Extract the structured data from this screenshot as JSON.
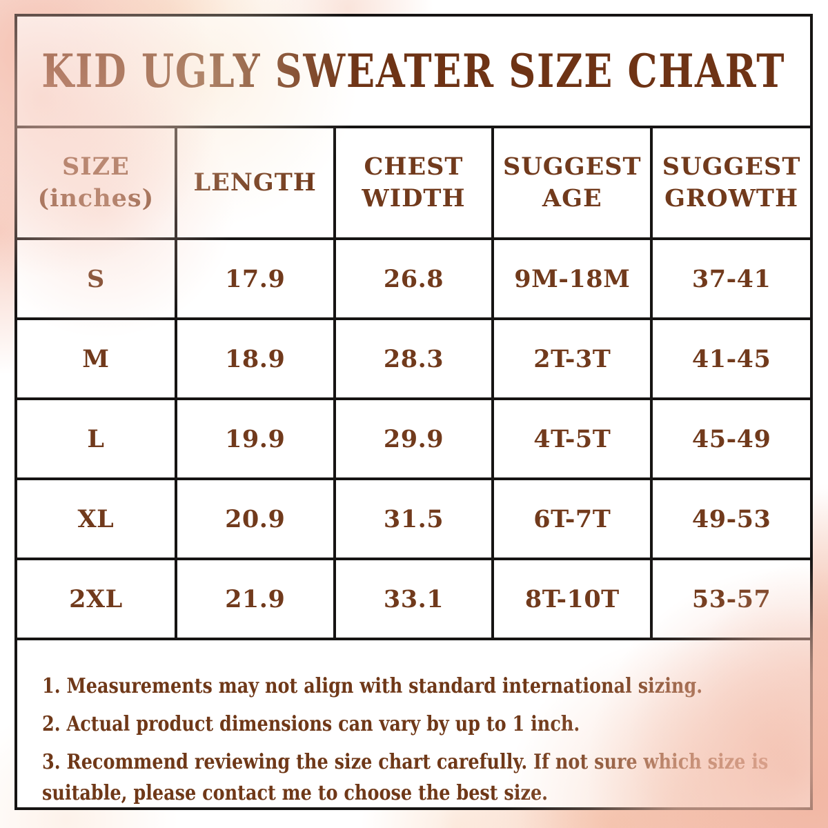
{
  "title": "KID UGLY SWEATER SIZE CHART",
  "colors": {
    "text_brown": "#713A1C",
    "title_brown": "#6E3315",
    "border_black": "#161413",
    "wash_pink": "#F4BFA9",
    "wash_peach": "#F1B4A0",
    "wash_cream": "#FBEFD9"
  },
  "table": {
    "headers": [
      {
        "line1": "SIZE",
        "line2": "(inches)"
      },
      {
        "line1": "LENGTH",
        "line2": ""
      },
      {
        "line1": "CHEST",
        "line2": "WIDTH"
      },
      {
        "line1": "SUGGEST",
        "line2": "AGE"
      },
      {
        "line1": "SUGGEST",
        "line2": "GROWTH"
      }
    ],
    "rows": [
      {
        "size": "S",
        "length": "17.9",
        "chest_width": "26.8",
        "suggest_age": "9M-18M",
        "suggest_growth": "37-41"
      },
      {
        "size": "M",
        "length": "18.9",
        "chest_width": "28.3",
        "suggest_age": "2T-3T",
        "suggest_growth": "41-45"
      },
      {
        "size": "L",
        "length": "19.9",
        "chest_width": "29.9",
        "suggest_age": "4T-5T",
        "suggest_growth": "45-49"
      },
      {
        "size": "XL",
        "length": "20.9",
        "chest_width": "31.5",
        "suggest_age": "6T-7T",
        "suggest_growth": "49-53"
      },
      {
        "size": "2XL",
        "length": "21.9",
        "chest_width": "33.1",
        "suggest_age": "8T-10T",
        "suggest_growth": "53-57"
      }
    ]
  },
  "notes": [
    "1. Measurements may not align with standard international sizing.",
    "2. Actual product dimensions can vary by up to 1 inch.",
    "3. Recommend reviewing the size chart carefully. If not sure which size is suitable, please contact me to choose the best size."
  ],
  "chart_data": {
    "type": "table",
    "title": "KID UGLY SWEATER SIZE CHART",
    "columns": [
      "SIZE (inches)",
      "LENGTH",
      "CHEST WIDTH",
      "SUGGEST AGE",
      "SUGGEST GROWTH"
    ],
    "rows": [
      [
        "S",
        17.9,
        26.8,
        "9M-18M",
        "37-41"
      ],
      [
        "M",
        18.9,
        28.3,
        "2T-3T",
        "41-45"
      ],
      [
        "L",
        19.9,
        29.9,
        "4T-5T",
        "45-49"
      ],
      [
        "XL",
        20.9,
        31.5,
        "6T-7T",
        "49-53"
      ],
      [
        "2XL",
        21.9,
        33.1,
        "8T-10T",
        "53-57"
      ]
    ]
  }
}
